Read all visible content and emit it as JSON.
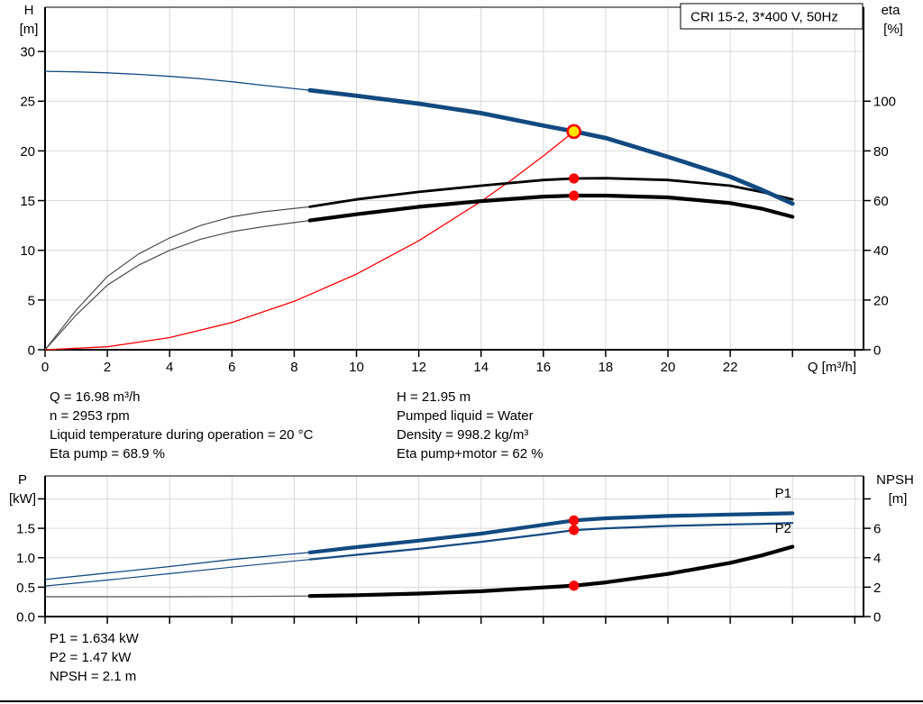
{
  "page_title": "CRI 15-2, 3*400 V, 50Hz",
  "colors": {
    "curve_blue": "#124a80",
    "label_blue": "#2d639f",
    "curve_black": "#000000",
    "thin_gray": "#4d4d4d",
    "red": "#ff0000",
    "duty_yellow": "#ffe600",
    "grid": "#d9d9d9",
    "axis": "#000000"
  },
  "info_top": {
    "left": [
      "Q = 16.98 m³/h",
      "n = 2953 rpm",
      "Liquid temperature during operation = 20 °C",
      "Eta pump = 68.9 %"
    ],
    "right": [
      "H = 21.95 m",
      "Pumped liquid = Water",
      "Density = 998.2 kg/m³",
      "Eta pump+motor = 62 %"
    ]
  },
  "info_bottom": [
    "P1 = 1.634 kW",
    "P2 = 1.47 kW",
    "NPSH = 2.1 m"
  ],
  "chart_data": [
    {
      "name": "hq-eta-chart",
      "type": "line",
      "title": "CRI 15-2, 3*400 V, 50Hz",
      "x_axis": {
        "label": "Q [m³/h]",
        "min": 0,
        "max": 26.28,
        "ticks": [
          0,
          2,
          4,
          6,
          8,
          10,
          12,
          14,
          16,
          18,
          20,
          22
        ],
        "extra_ticks": [
          24,
          26
        ],
        "show_labels": true
      },
      "y_left": {
        "label": "H [m]",
        "min": 0,
        "max": 34.45,
        "ticks": [
          0,
          5,
          10,
          15,
          20,
          25,
          30
        ],
        "extra_ticks": [],
        "decimals": 0
      },
      "y_right": {
        "label": "eta [%]",
        "min": 0,
        "max": 137.8,
        "ticks": [
          0,
          20,
          40,
          60,
          80,
          100
        ],
        "extra_ticks": [],
        "decimals": 0
      },
      "series": [
        {
          "name": "system-curve",
          "axis": "left",
          "color_key": "red",
          "width": 1.3,
          "x": [
            0,
            2,
            4,
            6,
            8,
            10,
            12,
            14,
            15,
            16,
            16.98
          ],
          "y": [
            0,
            0.3,
            1.22,
            2.74,
            4.87,
            7.61,
            10.96,
            14.92,
            17.13,
            19.49,
            21.95
          ]
        },
        {
          "name": "eta-pump-curve",
          "axis": "right",
          "color_key": "curve_black",
          "thin_color_key": "thin_gray",
          "width": 2.8,
          "thin_width": 1.2,
          "split": 8.5,
          "x": [
            0,
            1,
            2,
            3,
            4,
            5,
            6,
            7,
            8.5,
            10,
            12,
            14,
            16,
            17,
            18,
            20,
            22,
            23,
            24
          ],
          "y": [
            0,
            16,
            29.5,
            38.5,
            45,
            50,
            53.5,
            55.5,
            57.5,
            60.5,
            63.5,
            66,
            68.3,
            68.9,
            69,
            68.3,
            66,
            63.5,
            60.5
          ]
        },
        {
          "name": "eta-pump-motor-curve",
          "axis": "right",
          "color_key": "curve_black",
          "thin_color_key": "thin_gray",
          "width": 4.2,
          "thin_width": 1.2,
          "split": 8.5,
          "x": [
            0,
            1,
            2,
            3,
            4,
            5,
            6,
            7,
            8.5,
            10,
            12,
            14,
            16,
            17,
            18,
            20,
            22,
            23,
            24
          ],
          "y": [
            0,
            14,
            26,
            34,
            40,
            44.5,
            47.5,
            49.5,
            52,
            54.5,
            57.5,
            59.8,
            61.6,
            62,
            62,
            61.3,
            59,
            56.8,
            53.5
          ]
        },
        {
          "name": "head-curve",
          "axis": "left",
          "color_key": "curve_blue",
          "width": 4.8,
          "thin_width": 1.3,
          "split": 8.5,
          "x": [
            0,
            1,
            2,
            3,
            4,
            5,
            6,
            7,
            8.5,
            10,
            12,
            14,
            16,
            17,
            18,
            20,
            22,
            23,
            24
          ],
          "y": [
            28,
            27.95,
            27.85,
            27.7,
            27.5,
            27.25,
            26.95,
            26.6,
            26.1,
            25.55,
            24.75,
            23.8,
            22.55,
            21.95,
            21.3,
            19.4,
            17.4,
            16.1,
            14.7
          ]
        }
      ],
      "markers": [
        {
          "name": "eta-pump-point",
          "x": 16.98,
          "y": 68.9,
          "axis": "right",
          "style": "dot"
        },
        {
          "name": "eta-pump-motor-point",
          "x": 16.98,
          "y": 62,
          "axis": "right",
          "style": "dot"
        },
        {
          "name": "duty-point",
          "x": 16.98,
          "y": 21.95,
          "axis": "left",
          "style": "duty"
        }
      ],
      "annotations": []
    },
    {
      "name": "power-npsh-chart",
      "type": "line",
      "title": "",
      "x_axis": {
        "label": "",
        "min": 0,
        "max": 26.28,
        "ticks": [
          0,
          2,
          4,
          6,
          8,
          10,
          12,
          14,
          16,
          18,
          20,
          22
        ],
        "extra_ticks": [
          24,
          26
        ],
        "show_labels": false
      },
      "y_left": {
        "label": "P [kW]",
        "min": 0,
        "max": 2.39,
        "ticks": [
          0,
          0.5,
          1,
          1.5
        ],
        "extra_ticks": [
          2
        ],
        "decimals": 1
      },
      "y_right": {
        "label": "NPSH [m]",
        "min": 0,
        "max": 9.56,
        "ticks": [
          0,
          2,
          4,
          6
        ],
        "extra_ticks": [
          8
        ],
        "decimals": 0
      },
      "series": [
        {
          "name": "p1-curve",
          "axis": "left",
          "color_key": "curve_blue",
          "width": 4.2,
          "thin_width": 1.3,
          "split": 8.5,
          "x": [
            0,
            2,
            4,
            6,
            8.5,
            10,
            12,
            14,
            16,
            17,
            18,
            20,
            22,
            23,
            24
          ],
          "y": [
            0.63,
            0.74,
            0.85,
            0.97,
            1.09,
            1.18,
            1.29,
            1.41,
            1.56,
            1.634,
            1.67,
            1.71,
            1.735,
            1.745,
            1.755
          ]
        },
        {
          "name": "p2-curve",
          "axis": "left",
          "color_key": "curve_blue",
          "width": 2.2,
          "thin_width": 1.2,
          "split": 8.5,
          "x": [
            0,
            2,
            4,
            6,
            8.5,
            10,
            12,
            14,
            16,
            17,
            18,
            20,
            22,
            23,
            24
          ],
          "y": [
            0.52,
            0.62,
            0.73,
            0.84,
            0.97,
            1.05,
            1.15,
            1.27,
            1.4,
            1.47,
            1.5,
            1.54,
            1.565,
            1.575,
            1.59
          ]
        },
        {
          "name": "npsh-curve",
          "axis": "right",
          "color_key": "curve_black",
          "thin_color_key": "thin_gray",
          "width": 4.2,
          "thin_width": 1.2,
          "split": 8.5,
          "x": [
            0,
            2,
            4,
            6,
            8.5,
            10,
            12,
            14,
            16,
            17,
            18,
            20,
            22,
            23,
            24
          ],
          "y": [
            1.35,
            1.35,
            1.35,
            1.36,
            1.4,
            1.45,
            1.56,
            1.72,
            1.98,
            2.1,
            2.32,
            2.9,
            3.65,
            4.15,
            4.75
          ]
        }
      ],
      "markers": [
        {
          "name": "p1-point",
          "x": 16.98,
          "y": 1.634,
          "axis": "left",
          "style": "dot"
        },
        {
          "name": "p2-point",
          "x": 16.98,
          "y": 1.47,
          "axis": "left",
          "style": "dot"
        },
        {
          "name": "npsh-point",
          "x": 16.98,
          "y": 2.1,
          "axis": "right",
          "style": "dot"
        }
      ],
      "annotations": [
        {
          "text": "P1",
          "x": 23.7,
          "y": 2.02,
          "axis": "left",
          "color_key": "label_blue"
        },
        {
          "text": "P2",
          "x": 23.7,
          "y": 1.425,
          "axis": "left",
          "color_key": "label_blue"
        }
      ]
    }
  ]
}
